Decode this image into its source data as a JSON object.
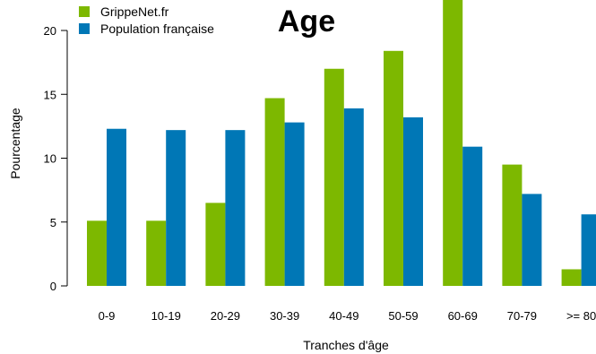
{
  "chart_data": {
    "type": "bar",
    "title": "Age",
    "xlabel": "Tranches d'âge",
    "ylabel": "Pourcentage",
    "categories": [
      "0-9",
      "10-19",
      "20-29",
      "30-39",
      "40-49",
      "50-59",
      "60-69",
      "70-79",
      ">= 80"
    ],
    "series": [
      {
        "name": "GrippeNet.fr",
        "color": "#7db800",
        "values": [
          5.1,
          5.1,
          6.5,
          14.7,
          17.0,
          18.4,
          22.5,
          9.5,
          1.3
        ]
      },
      {
        "name": "Population française",
        "color": "#0077b6",
        "values": [
          12.3,
          12.2,
          12.2,
          12.8,
          13.9,
          13.2,
          10.9,
          7.2,
          5.6
        ]
      }
    ],
    "ylim": [
      0,
      22
    ],
    "yticks": [
      "0",
      "5",
      "10",
      "15",
      "20"
    ],
    "grid": false,
    "legend": "top-left"
  }
}
